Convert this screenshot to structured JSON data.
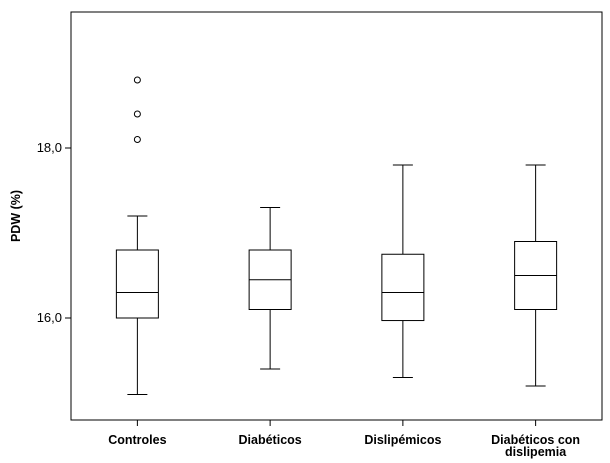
{
  "chart_data": {
    "type": "box",
    "title": "",
    "xlabel": "",
    "ylabel": "PDW (%)",
    "ylim": [
      14.8,
      19.6
    ],
    "yticks": [
      {
        "value": 16.0,
        "label": "16,0"
      },
      {
        "value": 18.0,
        "label": "18,0"
      }
    ],
    "grid": false,
    "categories": [
      {
        "lines": [
          "Controles"
        ]
      },
      {
        "lines": [
          "Diabéticos"
        ]
      },
      {
        "lines": [
          "Dislipémicos"
        ]
      },
      {
        "lines": [
          "Diabéticos con",
          "dislipemia"
        ]
      }
    ],
    "boxes": [
      {
        "min": 15.1,
        "q1": 16.0,
        "median": 16.3,
        "q3": 16.8,
        "max": 17.2,
        "outliers": [
          18.1,
          18.4,
          18.8
        ]
      },
      {
        "min": 15.4,
        "q1": 16.1,
        "median": 16.45,
        "q3": 16.8,
        "max": 17.3,
        "outliers": []
      },
      {
        "min": 15.3,
        "q1": 15.97,
        "median": 16.3,
        "q3": 16.75,
        "max": 17.8,
        "outliers": []
      },
      {
        "min": 15.2,
        "q1": 16.1,
        "median": 16.5,
        "q3": 16.9,
        "max": 17.8,
        "outliers": []
      }
    ]
  }
}
